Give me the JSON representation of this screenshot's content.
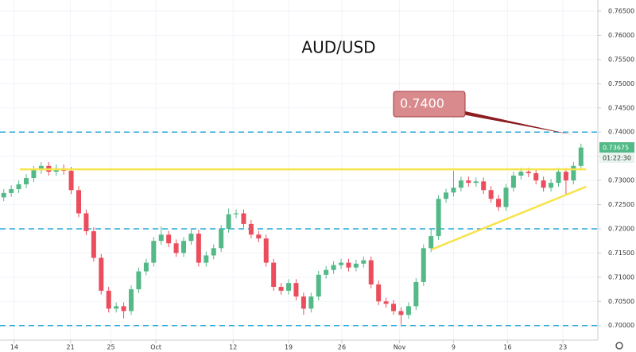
{
  "chart_data": {
    "type": "candlestick",
    "title": "AUD/USD",
    "up_color": "#53b987",
    "down_color": "#eb4d5c",
    "open": [
      0.7265,
      0.7274,
      0.7282,
      0.7292,
      0.7305,
      0.7322,
      0.733,
      0.7318,
      0.7325,
      0.732,
      0.728,
      0.7232,
      0.7195,
      0.714,
      0.7072,
      0.7035,
      0.704,
      0.703,
      0.7075,
      0.7112,
      0.713,
      0.7175,
      0.7188,
      0.717,
      0.715,
      0.7175,
      0.719,
      0.713,
      0.7145,
      0.716,
      0.72,
      0.723,
      0.7232,
      0.721,
      0.7188,
      0.718,
      0.713,
      0.708,
      0.7072,
      0.7088,
      0.706,
      0.7035,
      0.706,
      0.7105,
      0.7115,
      0.7125,
      0.713,
      0.712,
      0.7128,
      0.7135,
      0.7085,
      0.705,
      0.7045,
      0.703,
      0.7022,
      0.704,
      0.709,
      0.716,
      0.7185,
      0.7262,
      0.7275,
      0.7285,
      0.73,
      0.7295,
      0.7298,
      0.728,
      0.7262,
      0.7245,
      0.7285,
      0.731,
      0.7318,
      0.7315,
      0.73,
      0.7285,
      0.7295,
      0.7318,
      0.73,
      0.733
    ],
    "high": [
      0.7282,
      0.729,
      0.73,
      0.7313,
      0.733,
      0.7338,
      0.7338,
      0.7333,
      0.7333,
      0.7328,
      0.7288,
      0.724,
      0.7203,
      0.7148,
      0.708,
      0.7048,
      0.7048,
      0.7083,
      0.712,
      0.7138,
      0.7183,
      0.7205,
      0.7196,
      0.7178,
      0.7183,
      0.7198,
      0.7198,
      0.7153,
      0.7168,
      0.7208,
      0.7242,
      0.724,
      0.724,
      0.7218,
      0.7196,
      0.7188,
      0.7138,
      0.7088,
      0.7096,
      0.7096,
      0.7068,
      0.7068,
      0.7113,
      0.7123,
      0.7133,
      0.7138,
      0.7138,
      0.7136,
      0.7143,
      0.7143,
      0.7093,
      0.7058,
      0.7053,
      0.7038,
      0.7048,
      0.7098,
      0.7168,
      0.72,
      0.727,
      0.7283,
      0.732,
      0.7308,
      0.7308,
      0.7306,
      0.7306,
      0.7288,
      0.727,
      0.7293,
      0.7318,
      0.7326,
      0.7326,
      0.7323,
      0.7308,
      0.7303,
      0.7326,
      0.7326,
      0.7338,
      0.7376
    ],
    "low": [
      0.7257,
      0.7266,
      0.7274,
      0.7284,
      0.7297,
      0.7314,
      0.731,
      0.731,
      0.7312,
      0.7272,
      0.7224,
      0.7187,
      0.7132,
      0.7064,
      0.7027,
      0.7027,
      0.7015,
      0.7022,
      0.7067,
      0.7104,
      0.7122,
      0.7167,
      0.7162,
      0.7142,
      0.7142,
      0.7167,
      0.7122,
      0.7122,
      0.7137,
      0.7152,
      0.7192,
      0.7222,
      0.7202,
      0.718,
      0.7172,
      0.7122,
      0.7072,
      0.7064,
      0.7064,
      0.7052,
      0.7022,
      0.7027,
      0.7052,
      0.7097,
      0.7107,
      0.7117,
      0.7112,
      0.7112,
      0.712,
      0.7077,
      0.7042,
      0.7037,
      0.7022,
      0.7002,
      0.7014,
      0.7032,
      0.7082,
      0.7152,
      0.7177,
      0.7254,
      0.7267,
      0.7277,
      0.7287,
      0.7287,
      0.7272,
      0.7254,
      0.7237,
      0.7237,
      0.7277,
      0.7302,
      0.7307,
      0.7292,
      0.7277,
      0.7277,
      0.7287,
      0.727,
      0.7292,
      0.7322
    ],
    "close": [
      0.7274,
      0.7282,
      0.7292,
      0.7305,
      0.7322,
      0.733,
      0.7318,
      0.7325,
      0.732,
      0.728,
      0.7232,
      0.7195,
      0.714,
      0.7072,
      0.7035,
      0.704,
      0.703,
      0.7075,
      0.7112,
      0.713,
      0.7175,
      0.7188,
      0.717,
      0.715,
      0.7175,
      0.719,
      0.713,
      0.7145,
      0.716,
      0.72,
      0.723,
      0.7232,
      0.721,
      0.7188,
      0.718,
      0.713,
      0.708,
      0.7072,
      0.7088,
      0.706,
      0.7035,
      0.706,
      0.7105,
      0.7115,
      0.7125,
      0.713,
      0.712,
      0.7128,
      0.7135,
      0.7085,
      0.705,
      0.7045,
      0.703,
      0.7022,
      0.704,
      0.709,
      0.716,
      0.7185,
      0.7262,
      0.7275,
      0.7285,
      0.73,
      0.7295,
      0.7298,
      0.728,
      0.7262,
      0.7245,
      0.7285,
      0.731,
      0.7318,
      0.7315,
      0.73,
      0.7285,
      0.7295,
      0.7318,
      0.73,
      0.733,
      0.7368
    ],
    "xlim": [
      -0.5,
      79.25
    ],
    "xticks": [
      {
        "value": 1.4,
        "label": "14"
      },
      {
        "value": 8.9,
        "label": "21"
      },
      {
        "value": 14.3,
        "label": "25"
      },
      {
        "value": 20.3,
        "label": "Oct"
      },
      {
        "value": 30.6,
        "label": "12"
      },
      {
        "value": 38,
        "label": "19"
      },
      {
        "value": 45.1,
        "label": "26"
      },
      {
        "value": 52.8,
        "label": "Nov"
      },
      {
        "value": 60,
        "label": "9"
      },
      {
        "value": 67.2,
        "label": "16"
      },
      {
        "value": 74.6,
        "label": "23"
      }
    ],
    "ylim": [
      0.697,
      0.7673
    ],
    "yticks": [
      {
        "value": 0.7,
        "label": "0.70000"
      },
      {
        "value": 0.705,
        "label": "0.70500"
      },
      {
        "value": 0.71,
        "label": "0.71000"
      },
      {
        "value": 0.715,
        "label": "0.71500"
      },
      {
        "value": 0.72,
        "label": "0.72000"
      },
      {
        "value": 0.725,
        "label": "0.72500"
      },
      {
        "value": 0.73,
        "label": "0.73000"
      },
      {
        "value": 0.735,
        "label": "0.73500"
      },
      {
        "value": 0.74,
        "label": "0.74000"
      },
      {
        "value": 0.745,
        "label": "0.74500"
      },
      {
        "value": 0.75,
        "label": "0.75000"
      },
      {
        "value": 0.755,
        "label": "0.75500"
      },
      {
        "value": 0.76,
        "label": "0.76000"
      },
      {
        "value": 0.765,
        "label": "0.76500"
      }
    ],
    "grid": true,
    "levels": [
      0.74,
      0.72,
      0.7
    ],
    "level_color": "#29a8d8",
    "trendlines": [
      {
        "x": [
          2.15,
          77.7
        ],
        "y": [
          0.7323,
          0.7323
        ]
      },
      {
        "x": [
          57.1,
          77.7
        ],
        "y": [
          0.71575,
          0.72872
        ]
      }
    ],
    "trendline_color": "#f7e34a",
    "annotation": "0.7400",
    "last_price": {
      "value": 0.73675,
      "label": "0.73675"
    },
    "countdown": "01:22:30"
  }
}
